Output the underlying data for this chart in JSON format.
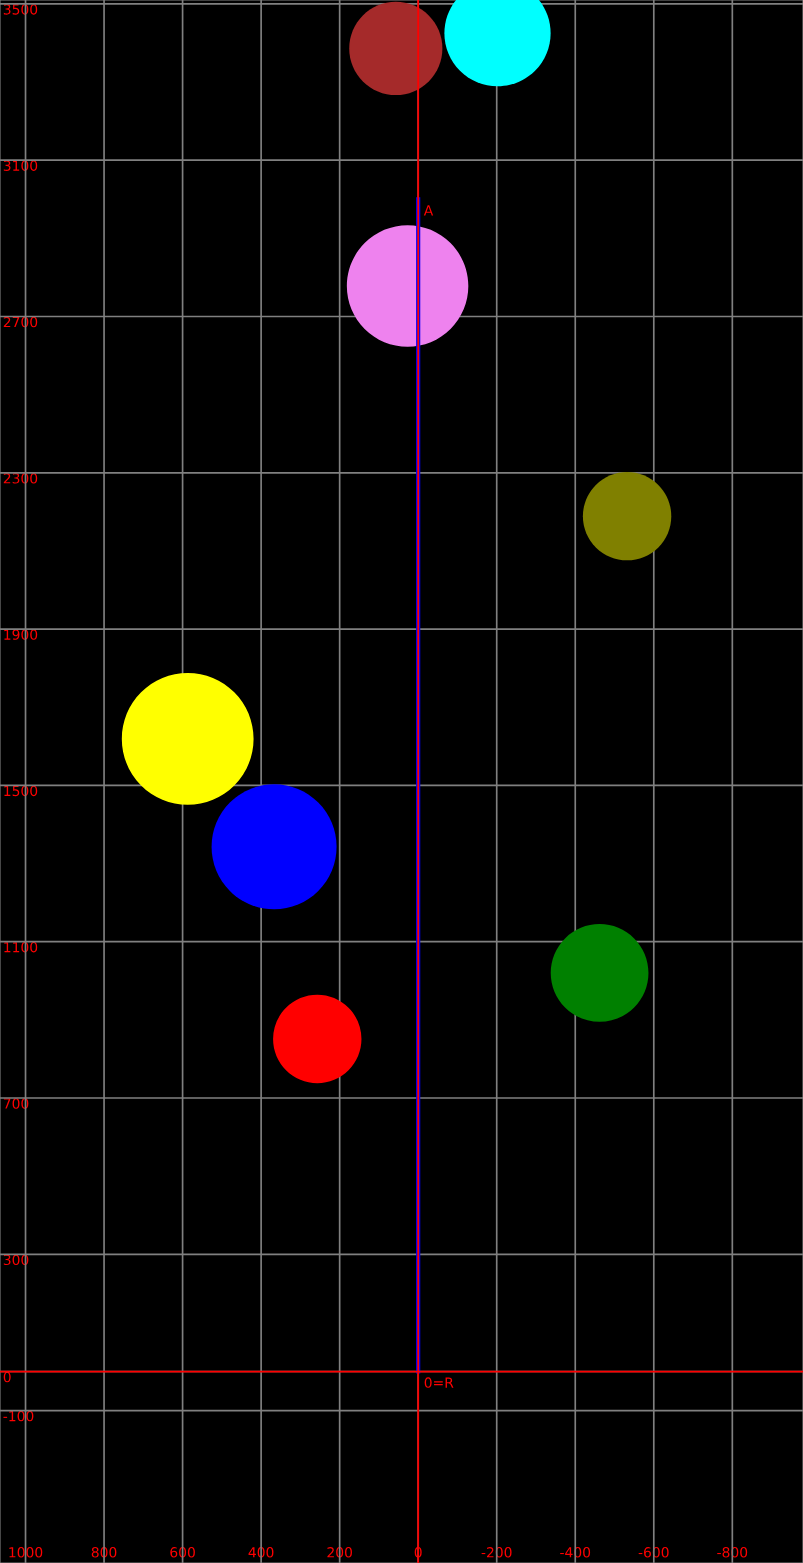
{
  "chart_data": {
    "type": "bubble",
    "xlim": [
      1065,
      -980
    ],
    "ylim": [
      -490,
      3510
    ],
    "xticks": [
      1000,
      800,
      600,
      400,
      200,
      0,
      -200,
      -400,
      -600,
      -800
    ],
    "yticks": [
      3500,
      3100,
      2700,
      2300,
      1900,
      1500,
      1100,
      700,
      300,
      0,
      -100
    ],
    "grid": true,
    "series": [
      {
        "x": [
          57,
          -202,
          27,
          -532,
          587,
          367,
          -462,
          257
        ],
        "values": [
          3386,
          3425,
          2778,
          2189,
          1619,
          1343,
          1020,
          851
        ],
        "sizes": [
          0.5,
          0.65,
          0.85,
          0.45,
          1,
          0.9,
          0.55,
          0.45
        ],
        "colors": [
          "#a52a2a",
          "#00ffff",
          "#ee82ee",
          "#808000",
          "#ffff00",
          "#0000ff",
          "#008000",
          "#ff0000"
        ]
      },
      {
        "type": "line",
        "x": [
          0,
          0
        ],
        "values": [
          0,
          3000
        ],
        "color": "#0000ff"
      },
      {
        "type": "line",
        "x": [
          0,
          0
        ],
        "values": [
          -490,
          3510
        ],
        "color": "#ff0000"
      },
      {
        "type": "line",
        "x": [
          1065,
          -980
        ],
        "values": [
          0,
          0
        ],
        "color": "#ff0000"
      }
    ],
    "annotations": [
      {
        "text": "A",
        "x": 0,
        "y": 3000
      },
      {
        "text": "0=R",
        "x": 0,
        "y": 0
      }
    ]
  }
}
